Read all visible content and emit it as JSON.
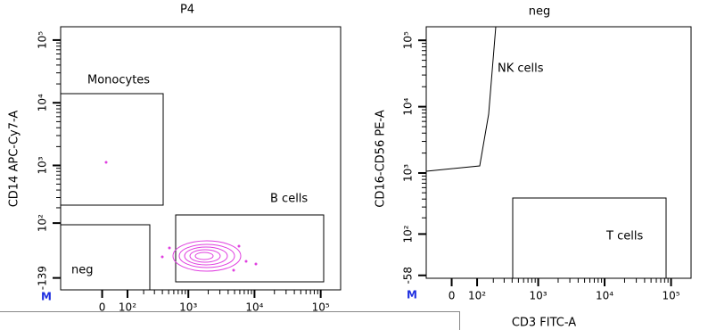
{
  "chart_data": [
    {
      "type": "scatter",
      "title": "P4",
      "y_label": "CD14 APC-Cy7-A",
      "marker": "M",
      "xlim": [
        -200,
        200000
      ],
      "xticks": [
        0,
        {
          "value": 100,
          "label": "10²"
        },
        {
          "value": 1000,
          "label": "10³"
        },
        {
          "value": 10000,
          "label": "10⁴"
        },
        {
          "value": 100000,
          "label": "10⁵"
        }
      ],
      "ylim": [
        -230,
        163000
      ],
      "yticks": [
        -139,
        {
          "value": 100,
          "label": "10²"
        },
        {
          "value": 1000,
          "label": "10³"
        },
        {
          "value": 10000,
          "label": "10⁴"
        },
        {
          "value": 100000,
          "label": "10⁵"
        }
      ],
      "gates": [
        "Monocytes",
        "B cells",
        "neg"
      ],
      "color": "#e040e0"
    },
    {
      "type": "scatter",
      "title": "neg",
      "x_label": "CD3 FITC-A",
      "y_label": "CD16-CD56 PE-A",
      "marker": "M",
      "xlim": [
        -100,
        200000
      ],
      "xticks": [
        0,
        {
          "value": 100,
          "label": "10²"
        },
        {
          "value": 1000,
          "label": "10³"
        },
        {
          "value": 10000,
          "label": "10⁴"
        },
        {
          "value": 100000,
          "label": "10⁵"
        }
      ],
      "ylim": [
        -70,
        160000
      ],
      "yticks": [
        -58,
        {
          "value": 100,
          "label": "10²"
        },
        {
          "value": 1000,
          "label": "10³"
        },
        {
          "value": 10000,
          "label": "10⁴"
        },
        {
          "value": 100000,
          "label": "10⁵"
        }
      ],
      "gates": [
        "NK cells",
        "T cells"
      ]
    }
  ]
}
